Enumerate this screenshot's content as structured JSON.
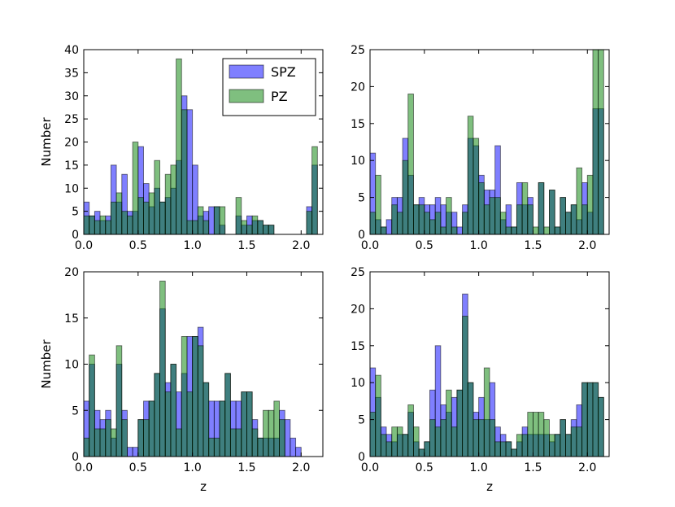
{
  "series_colors": {
    "SPZ": "#0000ff",
    "PZ": "#008000",
    "alpha": 0.5
  },
  "legend": {
    "items": [
      "SPZ",
      "PZ"
    ],
    "location": "upper-right of first panel"
  },
  "chart_data": [
    {
      "type": "bar",
      "panel": "top-left",
      "bin_width": 0.05,
      "x_start": 0.0,
      "xlim": [
        0,
        2.2
      ],
      "ylim": [
        0,
        40
      ],
      "xticks": [
        0.0,
        0.5,
        1.0,
        1.5,
        2.0
      ],
      "xtick_labels": [
        "0.0",
        "0.5",
        "1.0",
        "1.5",
        "2.0"
      ],
      "yticks": [
        0,
        5,
        10,
        15,
        20,
        25,
        30,
        35,
        40
      ],
      "ytick_labels": [
        "0",
        "5",
        "10",
        "15",
        "20",
        "25",
        "30",
        "35",
        "40"
      ],
      "xlabel": "",
      "ylabel": "Number",
      "series": [
        {
          "name": "SPZ",
          "values": [
            7,
            4,
            5,
            3,
            4,
            15,
            7,
            13,
            5,
            5,
            19,
            11,
            6,
            10,
            7,
            8,
            10,
            16,
            30,
            27,
            15,
            4,
            5,
            6,
            6,
            2,
            0,
            0,
            4,
            2,
            4,
            3,
            3,
            2,
            2,
            0,
            0,
            0,
            0,
            0,
            0,
            6,
            15
          ]
        },
        {
          "name": "PZ",
          "values": [
            4,
            4,
            3,
            4,
            3,
            7,
            9,
            5,
            4,
            20,
            8,
            7,
            9,
            16,
            7,
            13,
            15,
            38,
            27,
            3,
            3,
            6,
            3,
            0,
            6,
            6,
            0,
            0,
            8,
            3,
            2,
            4,
            3,
            2,
            2,
            0,
            0,
            0,
            0,
            0,
            0,
            5,
            19
          ]
        }
      ]
    },
    {
      "type": "bar",
      "panel": "top-right",
      "bin_width": 0.05,
      "x_start": 0.0,
      "xlim": [
        0,
        2.2
      ],
      "ylim": [
        0,
        25
      ],
      "xticks": [
        0.0,
        0.5,
        1.0,
        1.5,
        2.0
      ],
      "xtick_labels": [
        "0.0",
        "0.5",
        "1.0",
        "1.5",
        "2.0"
      ],
      "yticks": [
        0,
        5,
        10,
        15,
        20,
        25
      ],
      "ytick_labels": [
        "0",
        "5",
        "10",
        "15",
        "20",
        "25"
      ],
      "xlabel": "",
      "ylabel": "",
      "series": [
        {
          "name": "SPZ",
          "values": [
            11,
            2,
            1,
            2,
            5,
            5,
            13,
            8,
            4,
            5,
            4,
            4,
            5,
            4,
            3,
            3,
            1,
            4,
            13,
            12,
            8,
            6,
            6,
            12,
            2,
            4,
            1,
            7,
            4,
            5,
            0,
            7,
            0,
            6,
            1,
            5,
            3,
            4,
            2,
            7,
            3,
            17,
            17
          ]
        },
        {
          "name": "PZ",
          "values": [
            3,
            8,
            1,
            0,
            4,
            3,
            10,
            19,
            4,
            4,
            3,
            2,
            3,
            1,
            5,
            1,
            0,
            3,
            16,
            13,
            7,
            4,
            5,
            5,
            3,
            1,
            1,
            4,
            7,
            4,
            1,
            7,
            1,
            6,
            1,
            5,
            3,
            4,
            9,
            4,
            8,
            25,
            25
          ]
        }
      ]
    },
    {
      "type": "bar",
      "panel": "bottom-left",
      "bin_width": 0.05,
      "x_start": 0.0,
      "xlim": [
        0,
        2.2
      ],
      "ylim": [
        0,
        20
      ],
      "xticks": [
        0.0,
        0.5,
        1.0,
        1.5,
        2.0
      ],
      "xtick_labels": [
        "0.0",
        "0.5",
        "1.0",
        "1.5",
        "2.0"
      ],
      "yticks": [
        0,
        5,
        10,
        15,
        20
      ],
      "ytick_labels": [
        "0",
        "5",
        "10",
        "15",
        "20"
      ],
      "xlabel": "z",
      "ylabel": "Number",
      "series": [
        {
          "name": "SPZ",
          "values": [
            6,
            10,
            5,
            4,
            5,
            2,
            10,
            5,
            1,
            1,
            4,
            6,
            6,
            9,
            16,
            8,
            10,
            7,
            9,
            13,
            13,
            14,
            8,
            6,
            6,
            6,
            9,
            6,
            6,
            7,
            7,
            4,
            2,
            2,
            2,
            2,
            5,
            4,
            2,
            1,
            0,
            0,
            0
          ]
        },
        {
          "name": "PZ",
          "values": [
            2,
            11,
            3,
            3,
            4,
            3,
            12,
            4,
            0,
            0,
            4,
            4,
            6,
            9,
            19,
            7,
            10,
            3,
            13,
            7,
            13,
            12,
            8,
            2,
            2,
            6,
            9,
            3,
            3,
            7,
            7,
            3,
            2,
            5,
            5,
            6,
            4,
            0,
            0,
            0,
            0,
            0,
            0
          ]
        }
      ]
    },
    {
      "type": "bar",
      "panel": "bottom-right",
      "bin_width": 0.05,
      "x_start": 0.0,
      "xlim": [
        0,
        2.2
      ],
      "ylim": [
        0,
        25
      ],
      "xticks": [
        0.0,
        0.5,
        1.0,
        1.5,
        2.0
      ],
      "xtick_labels": [
        "0.0",
        "0.5",
        "1.0",
        "1.5",
        "2.0"
      ],
      "yticks": [
        0,
        5,
        10,
        15,
        20,
        25
      ],
      "ytick_labels": [
        "0",
        "5",
        "10",
        "15",
        "20",
        "25"
      ],
      "xlabel": "z",
      "ylabel": "",
      "series": [
        {
          "name": "SPZ",
          "values": [
            12,
            8,
            4,
            3,
            2,
            3,
            3,
            6,
            2,
            1,
            2,
            9,
            15,
            7,
            6,
            8,
            9,
            22,
            10,
            6,
            8,
            5,
            10,
            4,
            3,
            2,
            1,
            2,
            4,
            3,
            3,
            3,
            3,
            2,
            3,
            5,
            3,
            5,
            7,
            10,
            10,
            10,
            8
          ]
        },
        {
          "name": "PZ",
          "values": [
            6,
            11,
            3,
            2,
            4,
            4,
            3,
            7,
            4,
            1,
            2,
            5,
            4,
            5,
            9,
            4,
            9,
            19,
            10,
            5,
            5,
            12,
            5,
            2,
            2,
            2,
            1,
            3,
            3,
            6,
            6,
            6,
            5,
            3,
            3,
            5,
            3,
            4,
            4,
            10,
            10,
            10,
            8
          ]
        }
      ]
    }
  ]
}
